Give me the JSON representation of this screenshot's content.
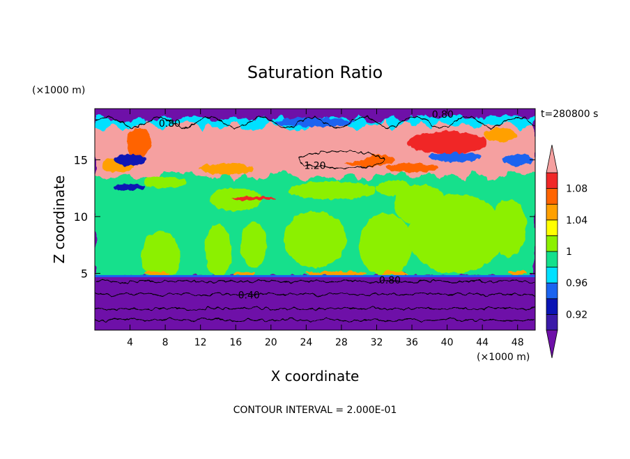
{
  "chart_data": {
    "type": "heatmap",
    "title": "Saturation Ratio",
    "xlabel": "X coordinate",
    "ylabel": "Z coordinate",
    "x_unit": "(×1000 m)",
    "y_unit": "(×1000 m)",
    "time_label": "t=280800 s",
    "footer": "CONTOUR INTERVAL = 2.000E-01",
    "xlim": [
      0,
      50
    ],
    "ylim": [
      0,
      19.5
    ],
    "x_ticks": [
      4,
      8,
      12,
      16,
      20,
      24,
      28,
      32,
      36,
      40,
      44,
      48
    ],
    "y_ticks": [
      5,
      10,
      15
    ],
    "colorbar": {
      "levels": [
        0.9,
        0.92,
        0.94,
        0.96,
        0.98,
        1.0,
        1.02,
        1.04,
        1.06,
        1.08,
        1.1
      ],
      "tick_values": [
        0.92,
        0.96,
        1.0,
        1.04,
        1.08
      ],
      "tick_labels": [
        "0.92",
        "0.96",
        "1",
        "1.04",
        "1.08"
      ],
      "colors": [
        "#3a1aa8",
        "#0a14b4",
        "#1a64f0",
        "#00e0ff",
        "#14e08c",
        "#8cf000",
        "#ffff00",
        "#ffa000",
        "#ff6400",
        "#f02828",
        "#f5a0a0"
      ],
      "under_color": "#6e10a8",
      "over_color": "#f5a0a0"
    },
    "regions": {
      "upper_dry_layer": {
        "z_from": 18.5,
        "z_to": 19.5,
        "value": 0.8
      },
      "supersaturated_layer": {
        "z_from": 13.0,
        "z_to": 18.0,
        "peak_value": 1.2
      },
      "mid_layer": {
        "z_from": 5.0,
        "z_to": 13.0,
        "value_range": [
          0.98,
          1.02
        ]
      },
      "lower_dry_layer": {
        "z_from": 0.0,
        "z_to": 4.8,
        "value_range": [
          0.4,
          0.8
        ]
      }
    },
    "contour_labels": [
      {
        "text": "0.80",
        "x": 8.5,
        "z": 18.2
      },
      {
        "text": "0.80",
        "x": 39.5,
        "z": 19.0
      },
      {
        "text": "1.20",
        "x": 25.0,
        "z": 14.5
      },
      {
        "text": "0.80",
        "x": 33.5,
        "z": 4.4
      },
      {
        "text": "0.40",
        "x": 17.5,
        "z": 3.1
      }
    ]
  }
}
